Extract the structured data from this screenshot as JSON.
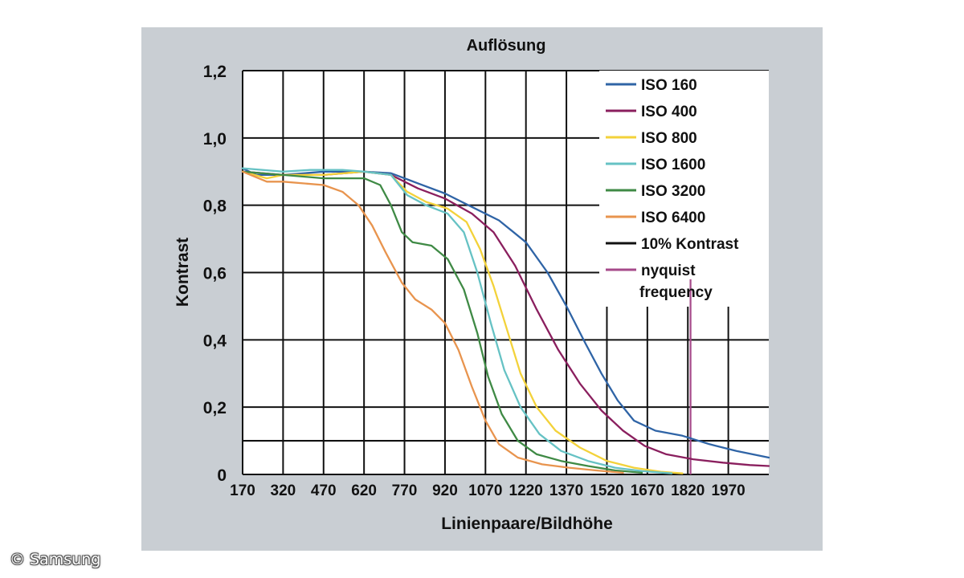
{
  "chart_data": {
    "type": "line",
    "title": "Auflösung",
    "xlabel": "Linienpaare/Bildhöhe",
    "ylabel": "Kontrast",
    "xlim": [
      170,
      2120
    ],
    "ylim": [
      0,
      1.2
    ],
    "x_ticks": [
      "170",
      "320",
      "470",
      "620",
      "770",
      "920",
      "1070",
      "1220",
      "1370",
      "1520",
      "1670",
      "1820",
      "1970"
    ],
    "y_ticks": [
      "0",
      "0,2",
      "0,4",
      "0,6",
      "0,8",
      "1,0",
      "1,2"
    ],
    "grid": true,
    "legend_position": "top-right",
    "series": [
      {
        "name": "ISO 160",
        "color": "#2f64a6",
        "points": [
          [
            170,
            0.91
          ],
          [
            220,
            0.89
          ],
          [
            320,
            0.89
          ],
          [
            470,
            0.9
          ],
          [
            620,
            0.9
          ],
          [
            720,
            0.895
          ],
          [
            820,
            0.865
          ],
          [
            920,
            0.835
          ],
          [
            1020,
            0.795
          ],
          [
            1120,
            0.755
          ],
          [
            1220,
            0.69
          ],
          [
            1300,
            0.6
          ],
          [
            1370,
            0.5
          ],
          [
            1440,
            0.39
          ],
          [
            1500,
            0.3
          ],
          [
            1560,
            0.22
          ],
          [
            1620,
            0.16
          ],
          [
            1700,
            0.13
          ],
          [
            1800,
            0.115
          ],
          [
            1900,
            0.09
          ],
          [
            2000,
            0.07
          ],
          [
            2120,
            0.05
          ]
        ]
      },
      {
        "name": "ISO 400",
        "color": "#8a1f5e",
        "points": [
          [
            170,
            0.9
          ],
          [
            320,
            0.89
          ],
          [
            470,
            0.89
          ],
          [
            620,
            0.9
          ],
          [
            720,
            0.89
          ],
          [
            820,
            0.85
          ],
          [
            920,
            0.82
          ],
          [
            1020,
            0.775
          ],
          [
            1100,
            0.72
          ],
          [
            1180,
            0.62
          ],
          [
            1260,
            0.49
          ],
          [
            1340,
            0.37
          ],
          [
            1420,
            0.27
          ],
          [
            1500,
            0.19
          ],
          [
            1580,
            0.13
          ],
          [
            1660,
            0.085
          ],
          [
            1740,
            0.06
          ],
          [
            1840,
            0.045
          ],
          [
            1950,
            0.035
          ],
          [
            2050,
            0.028
          ],
          [
            2120,
            0.025
          ]
        ]
      },
      {
        "name": "ISO 800",
        "color": "#f3d23a",
        "points": [
          [
            170,
            0.9
          ],
          [
            260,
            0.88
          ],
          [
            320,
            0.89
          ],
          [
            470,
            0.89
          ],
          [
            620,
            0.9
          ],
          [
            720,
            0.89
          ],
          [
            780,
            0.84
          ],
          [
            850,
            0.81
          ],
          [
            930,
            0.79
          ],
          [
            1000,
            0.75
          ],
          [
            1050,
            0.67
          ],
          [
            1100,
            0.56
          ],
          [
            1150,
            0.43
          ],
          [
            1200,
            0.3
          ],
          [
            1260,
            0.2
          ],
          [
            1330,
            0.13
          ],
          [
            1420,
            0.08
          ],
          [
            1520,
            0.04
          ],
          [
            1620,
            0.02
          ],
          [
            1720,
            0.008
          ],
          [
            1800,
            0.003
          ]
        ]
      },
      {
        "name": "ISO 1600",
        "color": "#66c2c4",
        "points": [
          [
            170,
            0.91
          ],
          [
            320,
            0.9
          ],
          [
            420,
            0.905
          ],
          [
            540,
            0.905
          ],
          [
            620,
            0.9
          ],
          [
            720,
            0.89
          ],
          [
            780,
            0.83
          ],
          [
            850,
            0.8
          ],
          [
            930,
            0.775
          ],
          [
            990,
            0.72
          ],
          [
            1040,
            0.6
          ],
          [
            1090,
            0.45
          ],
          [
            1140,
            0.31
          ],
          [
            1200,
            0.2
          ],
          [
            1270,
            0.12
          ],
          [
            1350,
            0.07
          ],
          [
            1450,
            0.04
          ],
          [
            1550,
            0.02
          ],
          [
            1650,
            0.01
          ],
          [
            1760,
            0.003
          ]
        ]
      },
      {
        "name": "ISO 3200",
        "color": "#3f8a45",
        "points": [
          [
            170,
            0.9
          ],
          [
            320,
            0.89
          ],
          [
            470,
            0.88
          ],
          [
            620,
            0.88
          ],
          [
            680,
            0.86
          ],
          [
            720,
            0.8
          ],
          [
            760,
            0.72
          ],
          [
            800,
            0.69
          ],
          [
            870,
            0.68
          ],
          [
            930,
            0.64
          ],
          [
            990,
            0.55
          ],
          [
            1040,
            0.42
          ],
          [
            1080,
            0.29
          ],
          [
            1130,
            0.18
          ],
          [
            1190,
            0.1
          ],
          [
            1260,
            0.06
          ],
          [
            1350,
            0.04
          ],
          [
            1450,
            0.025
          ],
          [
            1550,
            0.012
          ],
          [
            1650,
            0.005
          ]
        ]
      },
      {
        "name": "ISO 6400",
        "color": "#e8944e",
        "points": [
          [
            170,
            0.9
          ],
          [
            260,
            0.87
          ],
          [
            320,
            0.87
          ],
          [
            470,
            0.86
          ],
          [
            540,
            0.84
          ],
          [
            600,
            0.8
          ],
          [
            650,
            0.74
          ],
          [
            700,
            0.66
          ],
          [
            760,
            0.57
          ],
          [
            810,
            0.52
          ],
          [
            870,
            0.49
          ],
          [
            920,
            0.45
          ],
          [
            970,
            0.37
          ],
          [
            1020,
            0.26
          ],
          [
            1070,
            0.16
          ],
          [
            1120,
            0.09
          ],
          [
            1190,
            0.05
          ],
          [
            1280,
            0.03
          ],
          [
            1380,
            0.02
          ],
          [
            1480,
            0.012
          ],
          [
            1580,
            0.005
          ]
        ]
      }
    ],
    "reference_lines": [
      {
        "name": "10% Kontrast",
        "orientation": "horizontal",
        "value": 0.1,
        "color": "#111111"
      },
      {
        "name": "nyquist frequency",
        "orientation": "vertical",
        "value": 1830,
        "color": "#a64a8a"
      }
    ]
  },
  "credit": "© Samsung"
}
